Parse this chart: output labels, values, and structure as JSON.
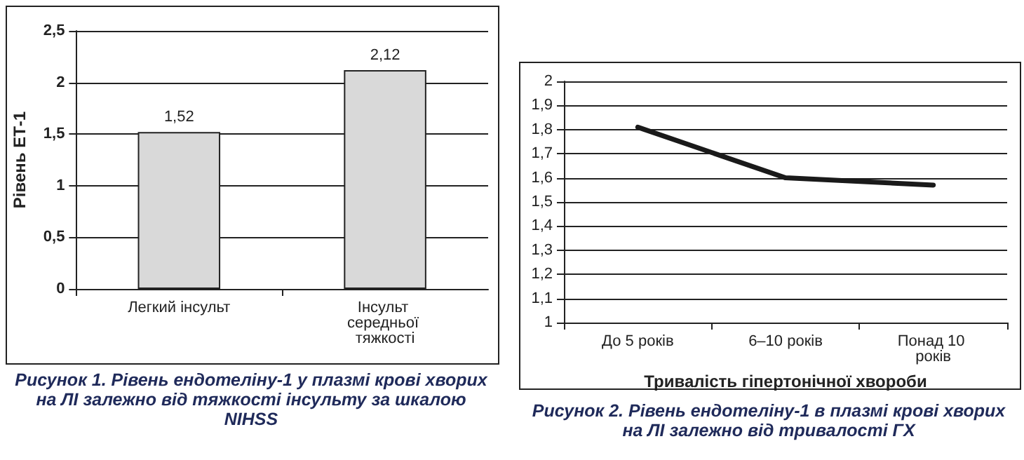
{
  "chart_data": [
    {
      "type": "bar",
      "title": "Рисунок 1. Рівень ендотеліну-1 у плазмі крові хворих на ЛІ залежно від тяжкості інсульту за шкалою NIHSS",
      "ylabel": "Рівень ЕТ-1",
      "categories": [
        "Легкий інсульт",
        "Інсульт середньої тяжкості"
      ],
      "values": [
        1.52,
        2.12
      ],
      "value_labels": [
        "1,52",
        "2,12"
      ],
      "color": "#d9d9d9",
      "ylim": [
        0,
        2.5
      ],
      "yticks": [
        0,
        {
          "value": 0.5,
          "label": "0,5"
        },
        1,
        {
          "value": 1.5,
          "label": "1,5"
        },
        2,
        {
          "value": 2.5,
          "label": "2,5"
        }
      ],
      "grid": "y"
    },
    {
      "type": "line",
      "title": "Рисунок 2. Рівень ендотеліну-1 в плазмі крові хворих на ЛІ залежно від тривалості ГХ",
      "xlabel": "Тривалість гіпертонічної хвороби",
      "categories": [
        "До 5 років",
        "6–10 років",
        "Понад 10 років"
      ],
      "values": [
        1.81,
        1.6,
        1.57
      ],
      "color": "#1a1a1a",
      "marker": "none",
      "line_style": "solid",
      "ylim": [
        1,
        2
      ],
      "yticks": [
        1,
        {
          "value": 1.1,
          "label": "1,1"
        },
        {
          "value": 1.2,
          "label": "1,2"
        },
        {
          "value": 1.3,
          "label": "1,3"
        },
        {
          "value": 1.4,
          "label": "1,4"
        },
        {
          "value": 1.5,
          "label": "1,5"
        },
        {
          "value": 1.6,
          "label": "1,6"
        },
        {
          "value": 1.7,
          "label": "1,7"
        },
        {
          "value": 1.8,
          "label": "1,8"
        },
        {
          "value": 1.9,
          "label": "1,9"
        },
        2
      ],
      "grid": "y"
    }
  ]
}
